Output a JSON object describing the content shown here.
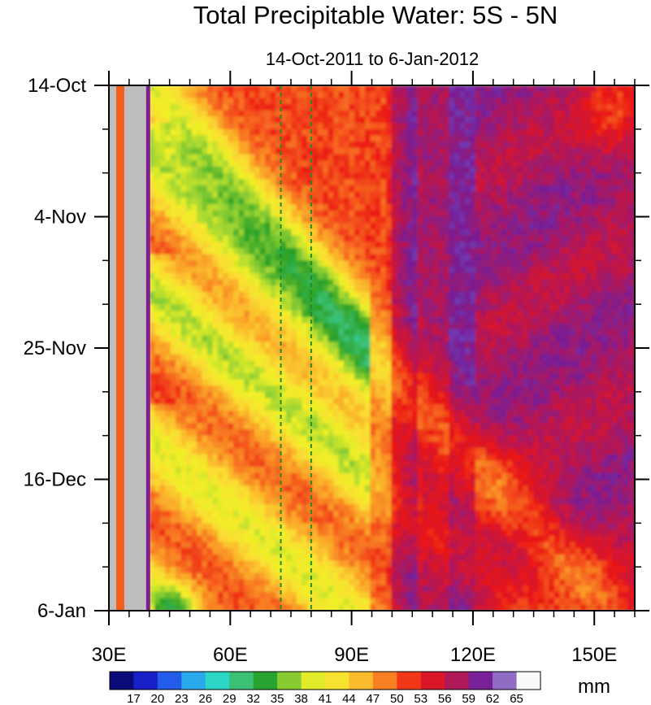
{
  "chart_data": {
    "type": "heatmap",
    "title": "Total Precipitable Water: 5S - 5N",
    "subtitle": "14-Oct-2011 to 6-Jan-2012",
    "x_axis": {
      "range": [
        30,
        160
      ],
      "ticks": [
        {
          "value": 30,
          "label": "30E"
        },
        {
          "value": 60,
          "label": "60E"
        },
        {
          "value": 90,
          "label": "90E"
        },
        {
          "value": 120,
          "label": "120E"
        },
        {
          "value": 150,
          "label": "150E"
        }
      ],
      "minor_step": 5
    },
    "y_axis": {
      "range_days": [
        0,
        84
      ],
      "direction": "downward",
      "ticks": [
        {
          "day": 0,
          "label": "14-Oct"
        },
        {
          "day": 21,
          "label": "4-Nov"
        },
        {
          "day": 42,
          "label": "25-Nov"
        },
        {
          "day": 63,
          "label": "16-Dec"
        },
        {
          "day": 84,
          "label": "6-Jan"
        }
      ],
      "minor_step_days": 7
    },
    "colorbar": {
      "units": "mm",
      "min": 15.5,
      "max": 66.5,
      "levels": [
        17,
        20,
        23,
        26,
        29,
        32,
        35,
        38,
        41,
        44,
        47,
        50,
        53,
        56,
        59,
        62,
        65
      ],
      "level_labels": [
        "17",
        "20",
        "23",
        "26",
        "29",
        "32",
        "35",
        "38",
        "41",
        "44",
        "47",
        "50",
        "53",
        "56",
        "59",
        "62",
        "65"
      ]
    },
    "missing_region_lon": [
      30,
      40
    ],
    "reference_lines_lon": [
      72.5,
      80
    ],
    "field_summary": "Equatorial TPW Hovmoller: wet (~45-55 mm) over western Indian Ocean with eastward-propagating moist bands; very moist (~58-65 mm) Maritime Continent/West Pacific east of ~100E; dry episodes near 40-50E late Dec/early Jan (~30-40 mm)"
  },
  "colors": {
    "missing": "#bebebe",
    "reference_line": "#228b22"
  }
}
